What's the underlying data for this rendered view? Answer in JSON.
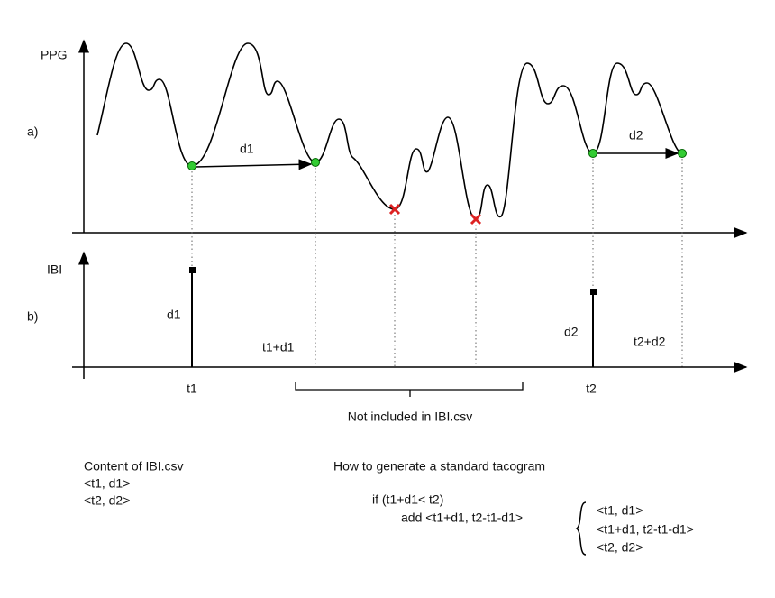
{
  "panel_a": {
    "label": "a)",
    "axis_label": "PPG",
    "interval_1": "d1",
    "interval_2": "d2"
  },
  "panel_b": {
    "label": "b)",
    "axis_label": "IBI",
    "spike_1_label": "d1",
    "spike_2_label": "d2",
    "point_1_end": "t1+d1",
    "point_2_end": "t2+d2",
    "tick_1": "t1",
    "tick_2": "t2",
    "excluded_note": "Not included in IBI.csv"
  },
  "csv_content": {
    "title": "Content of IBI.csv",
    "lines": [
      "<t1, d1>",
      "<t2, d2>"
    ]
  },
  "tacogram": {
    "title": "How to generate a standard tacogram",
    "condition": "if (t1+d1< t2)",
    "action": "add <t1+d1, t2-t1-d1>",
    "result": [
      "<t1, d1>",
      "<t1+d1, t2-t1-d1>",
      "<t2, d2>"
    ]
  }
}
